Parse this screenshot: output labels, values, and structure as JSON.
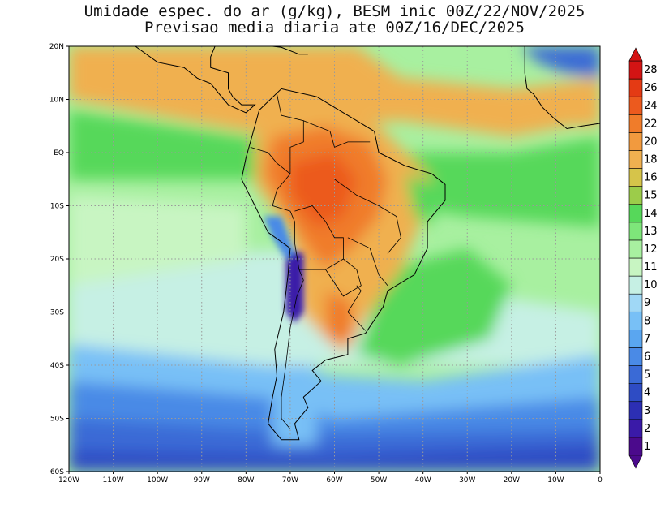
{
  "title_line1": "Umidade espec. do ar (g/kg), BESM inic 00Z/22/NOV/2025",
  "title_line2": "Previsao media diaria ate 00Z/16/DEC/2025",
  "lat_ticks": [
    "20N",
    "10N",
    "EQ",
    "10S",
    "20S",
    "30S",
    "40S",
    "50S",
    "60S"
  ],
  "lon_ticks": [
    "120W",
    "110W",
    "100W",
    "90W",
    "80W",
    "70W",
    "60W",
    "50W",
    "40W",
    "30W",
    "20W",
    "10W",
    "0"
  ],
  "colorbar": {
    "labels": [
      "1",
      "2",
      "3",
      "4",
      "5",
      "6",
      "7",
      "8",
      "9",
      "10",
      "11",
      "12",
      "13",
      "14",
      "15",
      "16",
      "18",
      "20",
      "22",
      "24",
      "26",
      "28"
    ],
    "colors": [
      "#4b0a8c",
      "#3a1aa8",
      "#2c2fb4",
      "#2e4cc4",
      "#3a6ad6",
      "#4a8ae6",
      "#5aa6f0",
      "#78c0f6",
      "#a0d8f6",
      "#c6f0e4",
      "#c8f5c2",
      "#a8f0a0",
      "#7ee67a",
      "#56d85a",
      "#9ccc4a",
      "#d6c44a",
      "#f0b050",
      "#f29a3e",
      "#f07c2a",
      "#ec5a1e",
      "#e43a14",
      "#d41414"
    ]
  },
  "map": {
    "lon_range": [
      -120,
      0
    ],
    "lat_range": [
      -60,
      20
    ],
    "colors": {
      "ocean_default": "#a8f0a0",
      "tropical_moist": "#f0b050",
      "amazon": "#f07c2a",
      "deep_amazon": "#ec5a1e",
      "moist_green": "#56d85a",
      "light_green": "#c8f5c2",
      "pale": "#c6f0e4",
      "light_blue": "#78c0f6",
      "mid_blue": "#4a8ae6",
      "blue": "#3a6ad6",
      "dark_blue": "#2e4cc4",
      "andes_purple": "#3a1aa8"
    }
  }
}
